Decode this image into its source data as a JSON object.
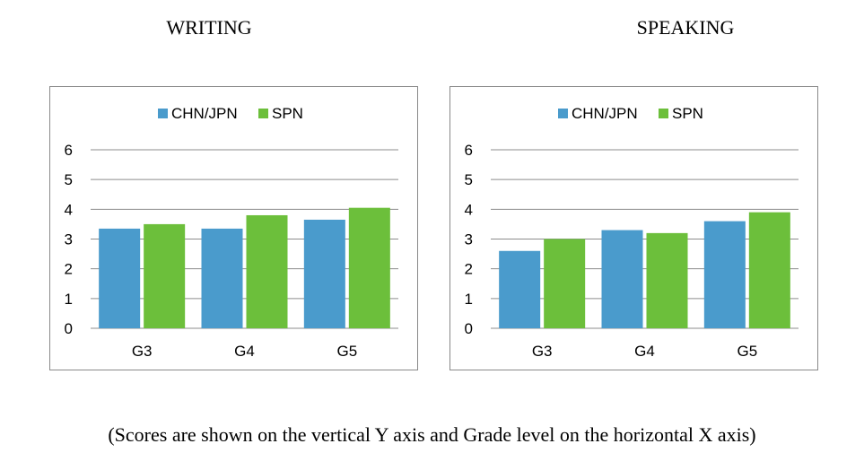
{
  "chart_data": [
    {
      "type": "bar",
      "title": "WRITING",
      "categories": [
        "G3",
        "G4",
        "G5"
      ],
      "series": [
        {
          "name": "CHN/JPN",
          "values": [
            3.35,
            3.35,
            3.65
          ]
        },
        {
          "name": "SPN",
          "values": [
            3.5,
            3.8,
            4.05
          ]
        }
      ],
      "ylim": [
        0,
        6
      ],
      "yticks": [
        "0",
        "1",
        "2",
        "3",
        "4",
        "5",
        "6"
      ],
      "grid": true,
      "legend": "top"
    },
    {
      "type": "bar",
      "title": "SPEAKING",
      "categories": [
        "G3",
        "G4",
        "G5"
      ],
      "series": [
        {
          "name": "CHN/JPN",
          "values": [
            2.6,
            3.3,
            3.6
          ]
        },
        {
          "name": "SPN",
          "values": [
            3.0,
            3.2,
            3.9
          ]
        }
      ],
      "ylim": [
        0,
        6
      ],
      "yticks": [
        "0",
        "1",
        "2",
        "3",
        "4",
        "5",
        "6"
      ],
      "grid": true,
      "legend": "top"
    }
  ],
  "colors": {
    "series": [
      "#4a9bcc",
      "#6cbf3b"
    ],
    "grid": "#8c8c8c",
    "axis_text": "#000000"
  },
  "caption": "(Scores are shown on the vertical Y axis and Grade level on the horizontal X axis)"
}
